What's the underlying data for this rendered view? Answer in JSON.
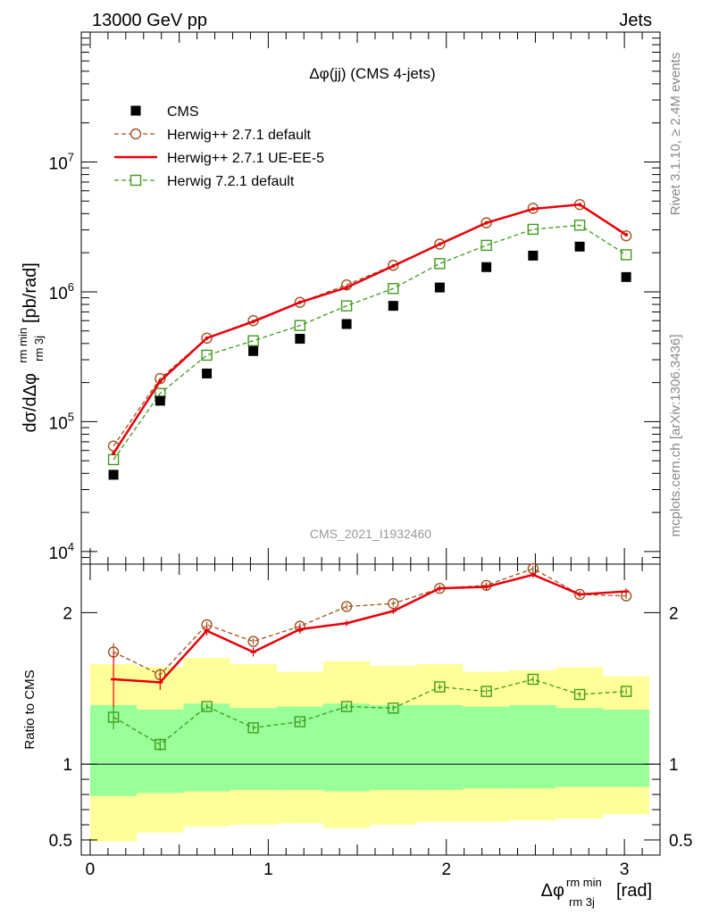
{
  "header": {
    "left": "13000 GeV pp",
    "right": "Jets",
    "side_rivet": "Rivet 3.1.10, ≥ 2.4M events",
    "side_mcplots": "mcplots.cern.ch [arXiv:1306.3436]",
    "analysis_id": "CMS_2021_I1932460"
  },
  "chart_data": [
    {
      "type": "scatter",
      "title": "Δφ(jj) (CMS 4-jets)",
      "ylabel": "dσ/dΔφ",
      "ylabel_sup": "rm min",
      "ylabel_sub": "rm 3j",
      "ylabel_unit": "[pb/rad]",
      "yscale": "log",
      "ylim": [
        8000,
        100000000
      ],
      "xlim": [
        -0.05,
        3.2
      ],
      "yticks": [
        {
          "value": 10000,
          "mant": "10",
          "exp": "4"
        },
        {
          "value": 100000,
          "mant": "10",
          "exp": "5"
        },
        {
          "value": 1000000,
          "mant": "10",
          "exp": "6"
        },
        {
          "value": 10000000,
          "mant": "10",
          "exp": "7"
        }
      ],
      "legend_position": "top-left",
      "x": [
        0.131,
        0.393,
        0.655,
        0.916,
        1.178,
        1.44,
        1.702,
        1.963,
        2.225,
        2.487,
        2.749,
        3.01
      ],
      "series": [
        {
          "name": "CMS",
          "color": "#000000",
          "marker": "filled-square",
          "line": "none",
          "values": [
            39000,
            145000,
            235000,
            350000,
            435000,
            565000,
            780000,
            1080000,
            1550000,
            1900000,
            2230000,
            1300000
          ]
        },
        {
          "name": "Herwig++ 2.7.1 default",
          "color": "#a0521e",
          "marker": "open-circle",
          "line": "dashed",
          "values": [
            65000,
            215000,
            440000,
            600000,
            830000,
            1130000,
            1600000,
            2330000,
            3400000,
            4400000,
            4700000,
            2700000
          ]
        },
        {
          "name": "Herwig++ 2.7.1 UE-EE-5",
          "color": "#e8000b",
          "marker": "none",
          "line": "solid",
          "values": [
            57000,
            205000,
            440000,
            590000,
            830000,
            1080000,
            1580000,
            2330000,
            3400000,
            4350000,
            4700000,
            2750000
          ]
        },
        {
          "name": "Herwig 7.2.1 default",
          "color": "#3f9a1c",
          "marker": "open-square",
          "line": "dashed",
          "values": [
            51000,
            165000,
            325000,
            420000,
            550000,
            780000,
            1060000,
            1650000,
            2280000,
            3030000,
            3260000,
            1930000
          ]
        }
      ]
    },
    {
      "type": "scatter",
      "ylabel": "Ratio to CMS",
      "xlabel": "Δφ",
      "xlabel_sup": "rm min",
      "xlabel_sub": "rm 3j",
      "xlabel_unit": "[rad]",
      "ylim": [
        0.4,
        2.32
      ],
      "yticks": [
        {
          "value": 0.5,
          "label": "0.5"
        },
        {
          "value": 1,
          "label": "1"
        },
        {
          "value": 2,
          "label": "2"
        }
      ],
      "xticks": [
        {
          "value": 0,
          "label": "0"
        },
        {
          "value": 1,
          "label": "1"
        },
        {
          "value": 2,
          "label": "2"
        },
        {
          "value": 3,
          "label": "3"
        }
      ],
      "bins": [
        0,
        0.262,
        0.524,
        0.785,
        1.047,
        1.309,
        1.571,
        1.833,
        2.094,
        2.356,
        2.618,
        2.88,
        3.14
      ],
      "band_stat": {
        "color": "#99ff99",
        "lo": [
          0.79,
          0.81,
          0.82,
          0.83,
          0.83,
          0.82,
          0.83,
          0.83,
          0.84,
          0.84,
          0.85,
          0.85
        ],
        "hi": [
          1.39,
          1.36,
          1.4,
          1.37,
          1.38,
          1.4,
          1.39,
          1.39,
          1.38,
          1.39,
          1.37,
          1.36
        ]
      },
      "band_total": {
        "color": "#ffff99",
        "lo": [
          0.49,
          0.55,
          0.59,
          0.6,
          0.61,
          0.58,
          0.6,
          0.62,
          0.62,
          0.63,
          0.64,
          0.67
        ],
        "hi": [
          1.66,
          1.64,
          1.7,
          1.66,
          1.61,
          1.68,
          1.65,
          1.66,
          1.61,
          1.62,
          1.64,
          1.58
        ]
      },
      "x": [
        0.131,
        0.393,
        0.655,
        0.916,
        1.178,
        1.44,
        1.702,
        1.963,
        2.225,
        2.487,
        2.749,
        3.01
      ],
      "series": [
        {
          "name": "Herwig++ 2.7.1 default",
          "color": "#a0521e",
          "marker": "open-circle",
          "line": "dashed",
          "values": [
            1.74,
            1.59,
            1.92,
            1.81,
            1.91,
            2.04,
            2.06,
            2.16,
            2.18,
            2.29,
            2.12,
            2.11
          ],
          "err": [
            0.06,
            0.04,
            0.02,
            0.02,
            0.02,
            0.02,
            0.02,
            0.02,
            0.02,
            0.02,
            0.02,
            0.02
          ]
        },
        {
          "name": "Herwig++ 2.7.1 UE-EE-5",
          "color": "#e8000b",
          "marker": "none",
          "line": "solid",
          "values": [
            1.56,
            1.54,
            1.88,
            1.74,
            1.89,
            1.93,
            2.01,
            2.16,
            2.17,
            2.25,
            2.12,
            2.14
          ],
          "err": [
            0.18,
            0.05,
            0.03,
            0.03,
            0.03,
            0.02,
            0.02,
            0.02,
            0.02,
            0.02,
            0.02,
            0.02
          ]
        },
        {
          "name": "Herwig 7.2.1 default",
          "color": "#3f9a1c",
          "marker": "open-square",
          "line": "dashed",
          "values": [
            1.31,
            1.13,
            1.38,
            1.24,
            1.28,
            1.38,
            1.37,
            1.51,
            1.48,
            1.56,
            1.46,
            1.48
          ],
          "err": [
            0.08,
            0.04,
            0.02,
            0.02,
            0.02,
            0.02,
            0.02,
            0.02,
            0.02,
            0.02,
            0.02,
            0.02
          ]
        }
      ]
    }
  ]
}
